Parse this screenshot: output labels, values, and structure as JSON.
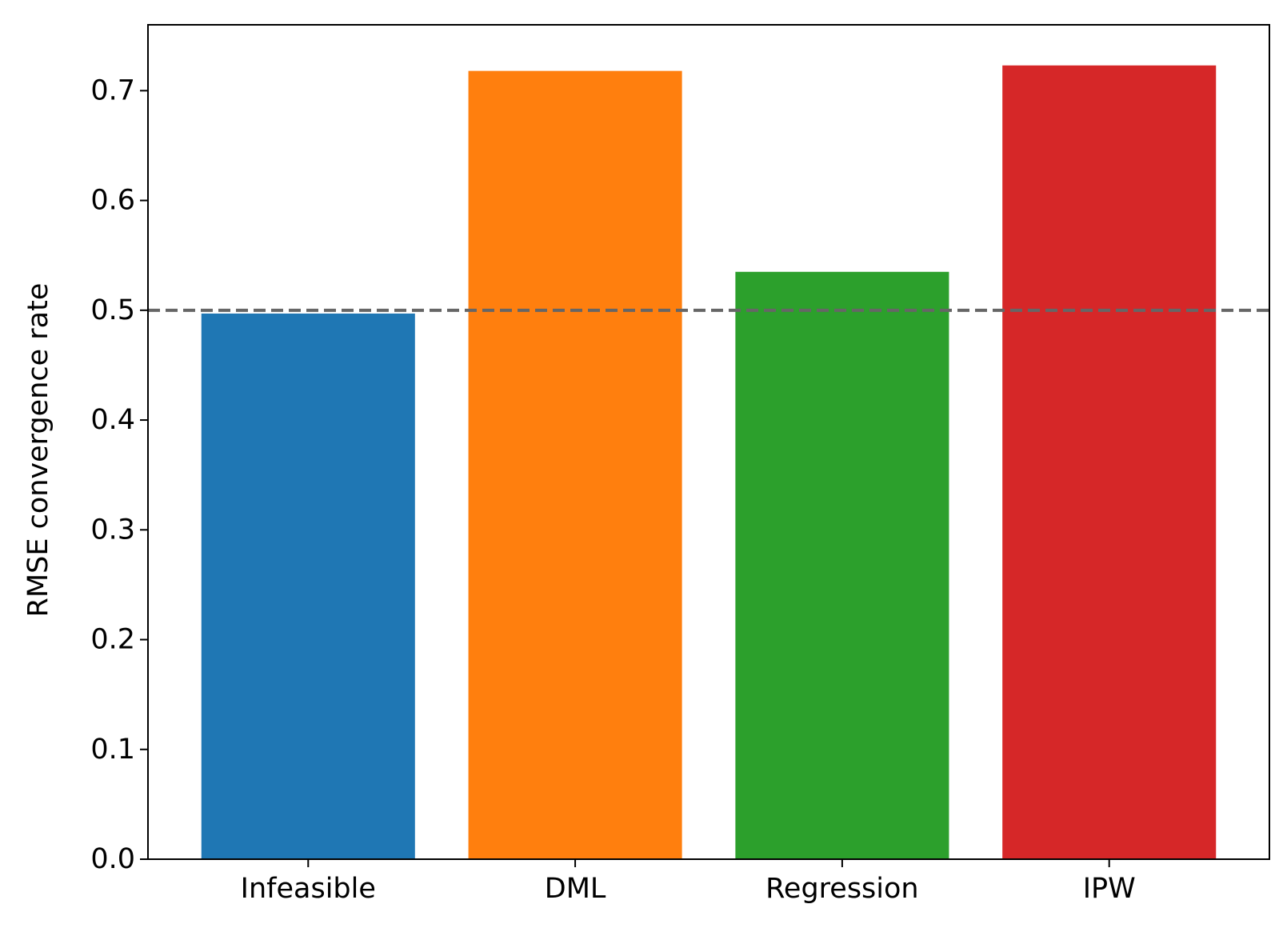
{
  "chart_data": {
    "type": "bar",
    "title": "",
    "xlabel": "",
    "ylabel": "RMSE convergence rate",
    "categories": [
      "Infeasible",
      "DML",
      "Regression",
      "IPW"
    ],
    "values": [
      0.497,
      0.718,
      0.535,
      0.723
    ],
    "colors": [
      "#1f77b4",
      "#ff7f0e",
      "#2ca02c",
      "#d62728"
    ],
    "ylim": [
      0,
      0.76
    ],
    "yticks": [
      0.0,
      0.1,
      0.2,
      0.3,
      0.4,
      0.5,
      0.6,
      0.7
    ],
    "ytick_labels": [
      "0.0",
      "0.1",
      "0.2",
      "0.3",
      "0.4",
      "0.5",
      "0.6",
      "0.7"
    ],
    "reference_line": {
      "y": 0.5,
      "style": "dashed",
      "color": "#666666"
    },
    "grid": false,
    "legend": "none"
  }
}
